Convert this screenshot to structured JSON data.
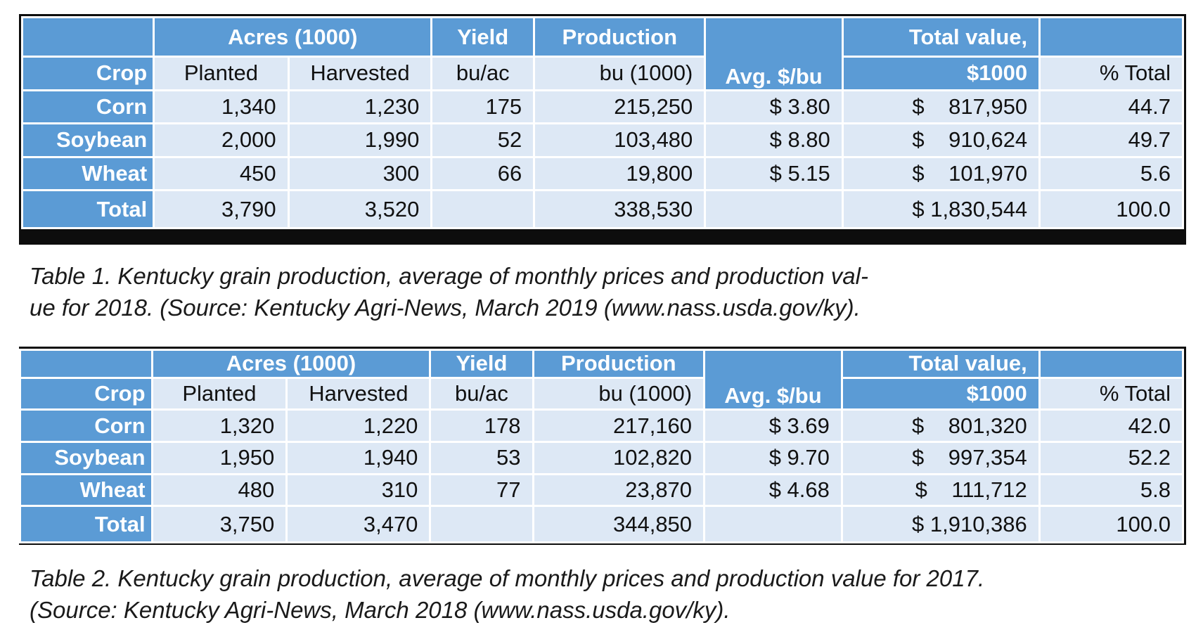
{
  "tables": [
    {
      "header_groups": {
        "acres": "Acres (1000)",
        "yield": "Yield",
        "production": "Production",
        "total_value_line1": "Total value,"
      },
      "header_sub": {
        "crop": "Crop",
        "planted": "Planted",
        "harvested": "Harvested",
        "bu_ac": "bu/ac",
        "bu_1000": "bu (1000)",
        "avg_price": "Avg. $/bu",
        "total_value_line2": "$1000",
        "pct_total": "% Total"
      },
      "rows": [
        {
          "crop": "Corn",
          "planted": "1,340",
          "harvested": "1,230",
          "yield": "175",
          "production": "215,250",
          "avg_price": "$ 3.80",
          "total_value": "$    817,950",
          "pct": "44.7"
        },
        {
          "crop": "Soybean",
          "planted": "2,000",
          "harvested": "1,990",
          "yield": "52",
          "production": "103,480",
          "avg_price": "$ 8.80",
          "total_value": "$    910,624",
          "pct": "49.7"
        },
        {
          "crop": "Wheat",
          "planted": "450",
          "harvested": "300",
          "yield": "66",
          "production": "19,800",
          "avg_price": "$ 5.15",
          "total_value": "$    101,970",
          "pct": "5.6"
        }
      ],
      "total": {
        "crop": "Total",
        "planted": "3,790",
        "harvested": "3,520",
        "yield": "",
        "production": "338,530",
        "avg_price": "",
        "total_value": "$ 1,830,544",
        "pct": "100.0"
      },
      "caption_lines": [
        "Table 1. Kentucky grain production, average of monthly prices and production val-",
        "ue for 2018. (Source: Kentucky Agri-News, March 2019 (www.nass.usda.gov/ky)."
      ]
    },
    {
      "header_groups": {
        "acres": "Acres (1000)",
        "yield": "Yield",
        "production": "Production",
        "total_value_line1": "Total value,"
      },
      "header_sub": {
        "crop": "Crop",
        "planted": "Planted",
        "harvested": "Harvested",
        "bu_ac": "bu/ac",
        "bu_1000": "bu (1000)",
        "avg_price": "Avg. $/bu",
        "total_value_line2": "$1000",
        "pct_total": "% Total"
      },
      "rows": [
        {
          "crop": "Corn",
          "planted": "1,320",
          "harvested": "1,220",
          "yield": "178",
          "production": "217,160",
          "avg_price": "$ 3.69",
          "total_value": "$    801,320",
          "pct": "42.0"
        },
        {
          "crop": "Soybean",
          "planted": "1,950",
          "harvested": "1,940",
          "yield": "53",
          "production": "102,820",
          "avg_price": "$ 9.70",
          "total_value": "$    997,354",
          "pct": "52.2"
        },
        {
          "crop": "Wheat",
          "planted": "480",
          "harvested": "310",
          "yield": "77",
          "production": "23,870",
          "avg_price": "$ 4.68",
          "total_value": "$    111,712",
          "pct": "5.8"
        }
      ],
      "total": {
        "crop": "Total",
        "planted": "3,750",
        "harvested": "3,470",
        "yield": "",
        "production": "344,850",
        "avg_price": "",
        "total_value": "$ 1,910,386",
        "pct": "100.0"
      },
      "caption_lines": [
        "Table 2. Kentucky grain production, average of monthly prices and production value for 2017.",
        "(Source: Kentucky Agri-News, March 2018 (www.nass.usda.gov/ky)."
      ]
    }
  ],
  "colors": {
    "header_blue": "#5b9bd5",
    "row_light": "#dde8f5",
    "border": "#0d0d0d"
  }
}
